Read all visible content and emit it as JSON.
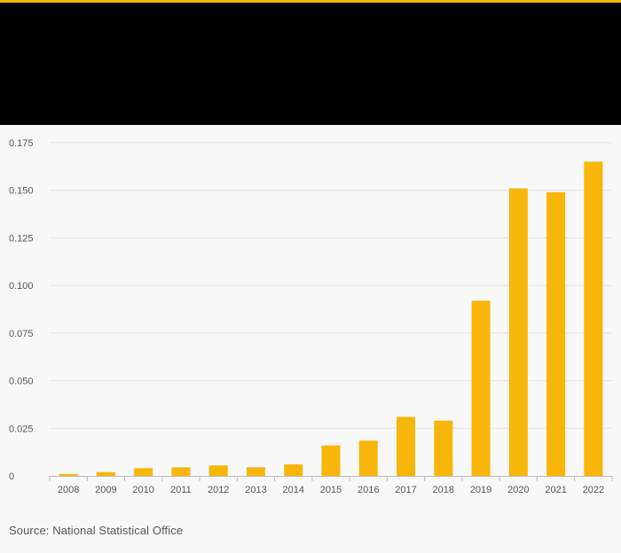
{
  "colors": {
    "accent": "#f8b60a",
    "header_bg": "#000000",
    "page_bg": "#f8f8f8",
    "grid": "#e2e2e2",
    "axis": "#bbbbbb",
    "tick_text": "#555555"
  },
  "chart_data": {
    "type": "bar",
    "title": "",
    "xlabel": "",
    "ylabel": "",
    "categories": [
      "2008",
      "2009",
      "2010",
      "2011",
      "2012",
      "2013",
      "2014",
      "2015",
      "2016",
      "2017",
      "2018",
      "2019",
      "2020",
      "2021",
      "2022"
    ],
    "values": [
      0.001,
      0.002,
      0.004,
      0.0045,
      0.0055,
      0.0045,
      0.006,
      0.016,
      0.0185,
      0.031,
      0.029,
      0.092,
      0.151,
      0.149,
      0.165
    ],
    "ylim": [
      0,
      0.175
    ],
    "yticks": [
      0,
      0.025,
      0.05,
      0.075,
      0.1,
      0.125,
      0.15,
      0.175
    ],
    "ytick_labels": [
      "0",
      "0.025",
      "0.050",
      "0.075",
      "0.100",
      "0.125",
      "0.150",
      "0.175"
    ],
    "grid": true,
    "legend": "none"
  },
  "source": {
    "text": "Source: National Statistical Office"
  }
}
